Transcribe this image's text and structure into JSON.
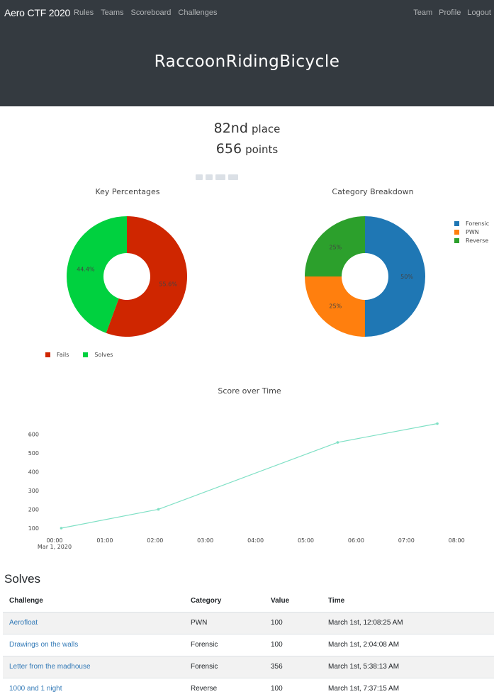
{
  "navbar": {
    "brand": "Aero CTF 2020",
    "left_links": [
      "Rules",
      "Teams",
      "Scoreboard",
      "Challenges"
    ],
    "right_links": [
      "Team",
      "Profile",
      "Logout"
    ]
  },
  "team": {
    "name": "RaccoonRidingBicycle"
  },
  "stats": {
    "place_num": "82nd",
    "place_unit": "place",
    "points_num": "656",
    "points_unit": "points"
  },
  "chart_data": [
    {
      "type": "pie",
      "title": "Key Percentages",
      "hole": true,
      "slices": [
        {
          "label": "Fails",
          "value": 55.6,
          "text": "55.6%",
          "color": "#cf2600"
        },
        {
          "label": "Solves",
          "value": 44.4,
          "text": "44.4%",
          "color": "#00d13f"
        }
      ],
      "legend_position": "bottom-left"
    },
    {
      "type": "pie",
      "title": "Category Breakdown",
      "hole": true,
      "slices": [
        {
          "label": "Forensic",
          "value": 50,
          "text": "50%",
          "color": "#1f77b4"
        },
        {
          "label": "PWN",
          "value": 25,
          "text": "25%",
          "color": "#ff7f0e"
        },
        {
          "label": "Reverse",
          "value": 25,
          "text": "25%",
          "color": "#2ca02c"
        }
      ],
      "legend_position": "right"
    },
    {
      "type": "line",
      "title": "Score over Time",
      "x": [
        "Mar 1, 2020 00:08",
        "Mar 1, 2020 02:04",
        "Mar 1, 2020 05:38",
        "Mar 1, 2020 07:37"
      ],
      "y": [
        100,
        200,
        556,
        656
      ],
      "x_ticks": [
        "00:00",
        "01:00",
        "02:00",
        "03:00",
        "04:00",
        "05:00",
        "06:00",
        "07:00",
        "08:00"
      ],
      "x_sublabel": "Mar 1, 2020",
      "y_ticks": [
        100,
        200,
        300,
        400,
        500,
        600
      ],
      "color": "#7fe0c5"
    }
  ],
  "solves": {
    "title": "Solves",
    "columns": [
      "Challenge",
      "Category",
      "Value",
      "Time"
    ],
    "rows": [
      {
        "challenge": "Aerofloat",
        "category": "PWN",
        "value": "100",
        "time": "March 1st, 12:08:25 AM"
      },
      {
        "challenge": "Drawings on the walls",
        "category": "Forensic",
        "value": "100",
        "time": "March 1st, 2:04:08 AM"
      },
      {
        "challenge": "Letter from the madhouse",
        "category": "Forensic",
        "value": "356",
        "time": "March 1st, 5:38:13 AM"
      },
      {
        "challenge": "1000 and 1 night",
        "category": "Reverse",
        "value": "100",
        "time": "March 1st, 7:37:15 AM"
      }
    ]
  }
}
